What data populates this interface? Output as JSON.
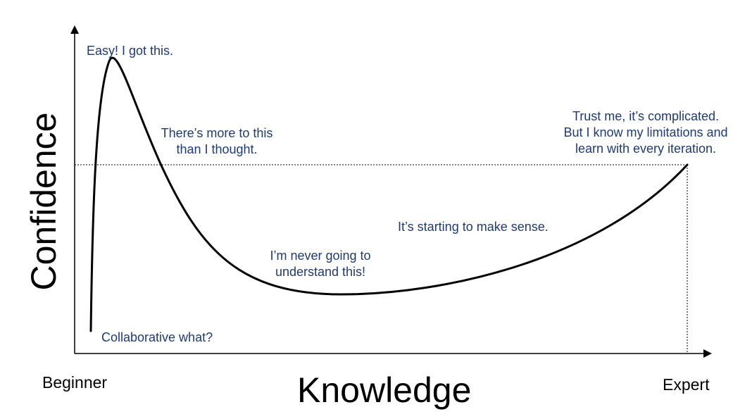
{
  "axes": {
    "y_title": "Confidence",
    "x_title": "Knowledge",
    "x_start": "Beginner",
    "x_end": "Expert"
  },
  "annotations": {
    "peak": [
      "Easy! I got this."
    ],
    "decline": [
      "There’s more to this",
      "than I thought."
    ],
    "valley": [
      "I’m never going to",
      "understand this!"
    ],
    "climb": [
      "It’s starting to make sense."
    ],
    "expert": [
      "Trust me, it’s complicated.",
      "But I know my limitations and",
      "learn with every iteration."
    ],
    "start": [
      "Collaborative what?"
    ]
  },
  "colors": {
    "annotation_text": "#1f3a75",
    "curve": "#000000",
    "axis": "#000000",
    "guide": "#000000"
  }
}
